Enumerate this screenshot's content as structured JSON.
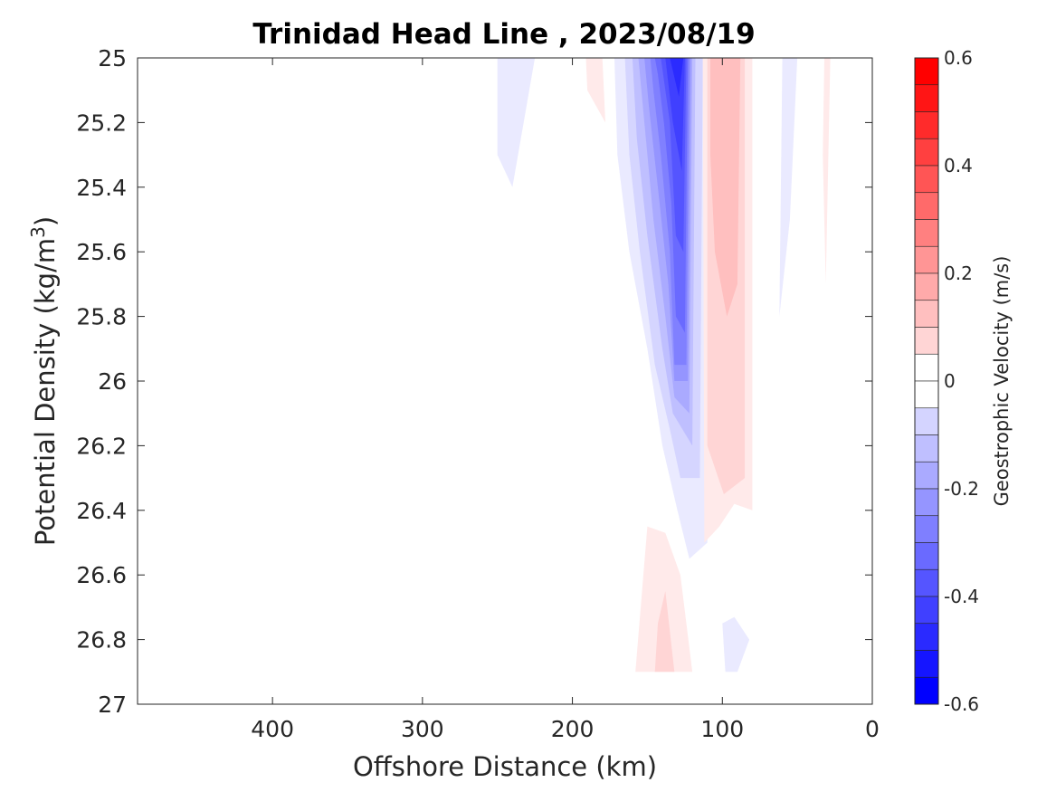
{
  "chart_data": {
    "type": "heatmap",
    "subtype": "filled-contour",
    "title": "Trinidad Head Line , 2023/08/19",
    "xlabel": "Offshore Distance (km)",
    "ylabel_main": "Potential Density (kg/m",
    "ylabel_sup": "3",
    "ylabel_close": ")",
    "x_axis": {
      "range": [
        490,
        0
      ],
      "reversed": true,
      "ticks": [
        400,
        300,
        200,
        100,
        0
      ],
      "tick_labels": [
        "400",
        "300",
        "200",
        "100",
        "0"
      ]
    },
    "y_axis": {
      "range": [
        25,
        27
      ],
      "reversed": true,
      "ticks": [
        25,
        25.2,
        25.4,
        25.6,
        25.8,
        26,
        26.2,
        26.4,
        26.6,
        26.8,
        27
      ],
      "tick_labels": [
        "25",
        "25.2",
        "25.4",
        "25.6",
        "25.8",
        "26",
        "26.2",
        "26.4",
        "26.6",
        "26.8",
        "27"
      ]
    },
    "colorbar": {
      "label": "Geostrophic Velocity (m/s)",
      "range": [
        -0.6,
        0.6
      ],
      "step": 0.05,
      "ticks": [
        0.6,
        0.4,
        0.2,
        0,
        -0.2,
        -0.4,
        -0.6
      ],
      "tick_labels": [
        "0.6",
        "0.4",
        "0.2",
        "0",
        "-0.2",
        "-0.4",
        "-0.6"
      ],
      "colormap": "blue-white-red",
      "negative_color": "#0000ff",
      "positive_color": "#ff0000",
      "zero_color": "#ffffff"
    },
    "contour_regions": [
      {
        "level": -0.05,
        "points": [
          [
            250,
            25
          ],
          [
            225,
            25
          ],
          [
            240,
            25.4
          ],
          [
            250,
            25.3
          ]
        ]
      },
      {
        "level": -0.05,
        "points": [
          [
            50,
            25
          ],
          [
            60,
            25
          ],
          [
            62,
            25.8
          ],
          [
            55,
            25.5
          ]
        ]
      },
      {
        "level": -0.05,
        "points": [
          [
            172,
            25
          ],
          [
            107,
            25
          ],
          [
            110,
            26.5
          ],
          [
            122,
            26.55
          ],
          [
            130,
            26.4
          ],
          [
            140,
            26.2
          ],
          [
            150,
            25.9
          ],
          [
            162,
            25.6
          ],
          [
            170,
            25.3
          ]
        ]
      },
      {
        "level": -0.1,
        "points": [
          [
            165,
            25
          ],
          [
            113,
            25
          ],
          [
            115,
            26.3
          ],
          [
            128,
            26.3
          ],
          [
            135,
            26.15
          ],
          [
            145,
            25.95
          ],
          [
            155,
            25.6
          ],
          [
            162,
            25.3
          ]
        ]
      },
      {
        "level": -0.15,
        "points": [
          [
            160,
            25
          ],
          [
            118,
            25
          ],
          [
            120,
            26.2
          ],
          [
            133,
            26.1
          ],
          [
            140,
            25.9
          ],
          [
            150,
            25.55
          ],
          [
            157,
            25.25
          ]
        ]
      },
      {
        "level": -0.2,
        "points": [
          [
            156,
            25
          ],
          [
            120,
            25
          ],
          [
            122,
            26.1
          ],
          [
            132,
            26.05
          ],
          [
            138,
            25.8
          ],
          [
            146,
            25.5
          ],
          [
            152,
            25.2
          ]
        ]
      },
      {
        "level": -0.25,
        "points": [
          [
            152,
            25
          ],
          [
            121,
            25
          ],
          [
            123,
            26.0
          ],
          [
            132,
            26.0
          ],
          [
            136,
            25.7
          ],
          [
            143,
            25.4
          ],
          [
            149,
            25.15
          ]
        ]
      },
      {
        "level": -0.3,
        "points": [
          [
            148,
            25
          ],
          [
            122,
            25
          ],
          [
            124,
            25.95
          ],
          [
            132,
            25.95
          ],
          [
            135,
            25.6
          ],
          [
            141,
            25.3
          ],
          [
            146,
            25.1
          ]
        ]
      },
      {
        "level": -0.35,
        "points": [
          [
            145,
            25
          ],
          [
            123,
            25
          ],
          [
            125,
            25.85
          ],
          [
            131,
            25.8
          ],
          [
            134,
            25.45
          ],
          [
            139,
            25.2
          ],
          [
            143,
            25.05
          ]
        ]
      },
      {
        "level": -0.4,
        "points": [
          [
            141,
            25
          ],
          [
            124,
            25
          ],
          [
            126,
            25.6
          ],
          [
            131,
            25.55
          ],
          [
            135,
            25.2
          ]
        ]
      },
      {
        "level": -0.45,
        "points": [
          [
            138,
            25
          ],
          [
            125,
            25
          ],
          [
            127,
            25.35
          ],
          [
            133,
            25.2
          ]
        ]
      },
      {
        "level": -0.5,
        "points": [
          [
            135,
            25
          ],
          [
            126,
            25
          ],
          [
            129,
            25.12
          ]
        ]
      },
      {
        "level": -0.05,
        "points": [
          [
            100,
            26.75
          ],
          [
            92,
            26.73
          ],
          [
            82,
            26.8
          ],
          [
            90,
            26.9
          ],
          [
            98,
            26.9
          ]
        ]
      },
      {
        "level": 0.05,
        "points": [
          [
            113,
            25
          ],
          [
            80,
            25
          ],
          [
            80,
            26.4
          ],
          [
            92,
            26.38
          ],
          [
            102,
            26.45
          ],
          [
            112,
            26.5
          ]
        ]
      },
      {
        "level": 0.1,
        "points": [
          [
            110,
            25
          ],
          [
            85,
            25
          ],
          [
            85,
            26.3
          ],
          [
            99,
            26.35
          ],
          [
            110,
            26.2
          ]
        ]
      },
      {
        "level": 0.15,
        "points": [
          [
            108,
            25
          ],
          [
            88,
            25
          ],
          [
            90,
            25.7
          ],
          [
            97,
            25.8
          ],
          [
            105,
            25.6
          ],
          [
            108,
            25.3
          ]
        ]
      },
      {
        "level": 0.05,
        "points": [
          [
            191,
            25
          ],
          [
            180,
            25
          ],
          [
            178,
            25.2
          ],
          [
            190,
            25.1
          ]
        ]
      },
      {
        "level": 0.05,
        "points": [
          [
            158,
            26.9
          ],
          [
            120,
            26.9
          ],
          [
            128,
            26.6
          ],
          [
            138,
            26.47
          ],
          [
            150,
            26.45
          ]
        ]
      },
      {
        "level": 0.1,
        "points": [
          [
            145,
            26.9
          ],
          [
            132,
            26.9
          ],
          [
            138,
            26.65
          ],
          [
            143,
            26.75
          ]
        ]
      },
      {
        "level": 0.05,
        "points": [
          [
            32,
            25
          ],
          [
            28,
            25
          ],
          [
            31,
            25.7
          ],
          [
            33,
            25.3
          ]
        ]
      }
    ]
  }
}
